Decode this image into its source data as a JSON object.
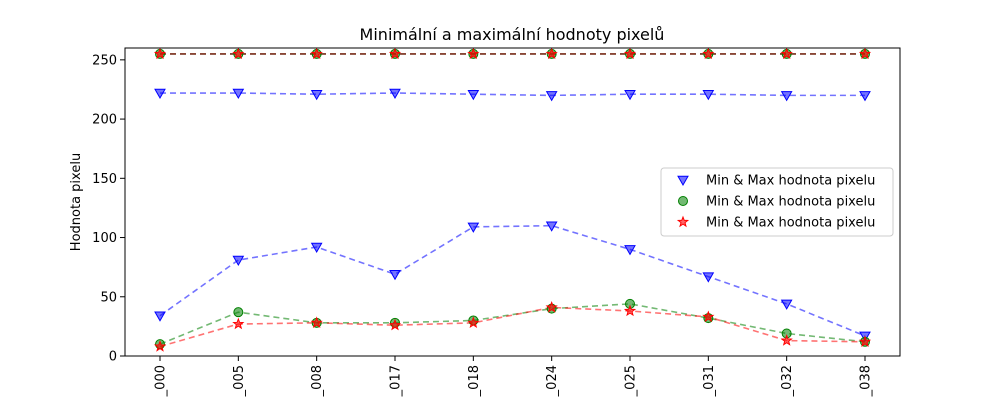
{
  "chart_data": {
    "type": "scatter",
    "title": "Minimální a maximální hodnoty pixelů",
    "xlabel": "",
    "ylabel": "Hodnota pixelu",
    "categories": [
      "_000",
      "_005",
      "_008",
      "_017",
      "_018",
      "_024",
      "_025",
      "_031",
      "_032",
      "_038"
    ],
    "ylim": [
      0,
      260
    ],
    "yticks": [
      0,
      50,
      100,
      150,
      200,
      250
    ],
    "grid": false,
    "legend_position": "center-right",
    "series": [
      {
        "name": "Min & Max hodnota pixelu",
        "marker": "triangle-down",
        "color": "#0000ff",
        "min": [
          34,
          81,
          92,
          69,
          109,
          110,
          90,
          67,
          44,
          17
        ],
        "max": [
          222,
          222,
          221,
          222,
          221,
          220,
          221,
          221,
          220,
          220
        ]
      },
      {
        "name": "Min & Max hodnota pixelu",
        "marker": "circle",
        "color": "#008000",
        "min": [
          10,
          37,
          28,
          28,
          30,
          40,
          44,
          32,
          19,
          12
        ],
        "max": [
          255,
          255,
          255,
          255,
          255,
          255,
          255,
          255,
          255,
          255
        ]
      },
      {
        "name": "Min & Max hodnota pixelu",
        "marker": "star",
        "color": "#ff0000",
        "min": [
          8,
          27,
          28,
          26,
          28,
          41,
          38,
          33,
          13,
          12
        ],
        "max": [
          255,
          255,
          255,
          255,
          255,
          255,
          255,
          255,
          255,
          255
        ]
      }
    ]
  }
}
